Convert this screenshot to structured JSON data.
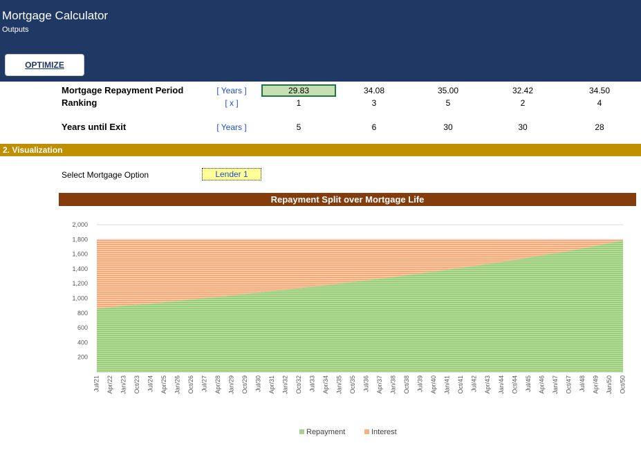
{
  "header": {
    "title": "Mortgage Calculator",
    "subtitle": "Outputs",
    "optimize_label": "OPTIMIZE",
    "bg_color": "#1f3864"
  },
  "table": {
    "rows": [
      {
        "label": "Mortgage Repayment Period",
        "unit": "[ Years ]",
        "values": [
          "29.83",
          "34.08",
          "35.00",
          "32.42",
          "34.50"
        ]
      },
      {
        "label": "Ranking",
        "unit": "[ x ]",
        "values": [
          "1",
          "3",
          "5",
          "2",
          "4"
        ]
      },
      {
        "label": "Years until Exit",
        "unit": "[ Years ]",
        "values": [
          "5",
          "6",
          "30",
          "30",
          "28"
        ]
      }
    ],
    "selected_cell_color": "#c6e0b4"
  },
  "section": {
    "title": "2.  Visualization",
    "color": "#bf8f00"
  },
  "select": {
    "label": "Select Mortgage Option",
    "value": "Lender 1"
  },
  "chart_data": {
    "type": "area",
    "title": "Repayment Split over Mortgage Life",
    "stacked": true,
    "x": [
      "Jul/21",
      "Apr/22",
      "Jan/23",
      "Oct/23",
      "Jul/24",
      "Apr/25",
      "Jan/26",
      "Oct/26",
      "Jul/27",
      "Apr/28",
      "Jan/29",
      "Oct/29",
      "Jul/30",
      "Apr/31",
      "Jan/32",
      "Oct/32",
      "Jul/33",
      "Apr/34",
      "Jan/35",
      "Oct/35",
      "Jul/36",
      "Apr/37",
      "Jan/38",
      "Oct/38",
      "Jul/39",
      "Apr/40",
      "Jan/41",
      "Oct/41",
      "Jul/42",
      "Apr/43",
      "Jan/44",
      "Oct/44",
      "Jul/45",
      "Apr/46",
      "Jan/47",
      "Oct/47",
      "Jul/48",
      "Apr/49",
      "Jan/50",
      "Oct/50"
    ],
    "series": [
      {
        "name": "Repayment",
        "color": "#a9d18e",
        "values": [
          860,
          880,
          900,
          915,
          930,
          950,
          965,
          985,
          1005,
          1020,
          1040,
          1060,
          1080,
          1100,
          1120,
          1140,
          1160,
          1180,
          1200,
          1225,
          1245,
          1270,
          1290,
          1315,
          1340,
          1365,
          1390,
          1415,
          1440,
          1470,
          1495,
          1525,
          1555,
          1585,
          1615,
          1645,
          1680,
          1715,
          1750,
          1790
        ]
      },
      {
        "name": "Interest",
        "color": "#f4b183",
        "values": [
          935,
          915,
          895,
          880,
          865,
          845,
          830,
          810,
          790,
          775,
          755,
          735,
          715,
          695,
          675,
          655,
          635,
          615,
          595,
          570,
          550,
          525,
          505,
          480,
          455,
          430,
          405,
          380,
          355,
          325,
          300,
          270,
          240,
          210,
          180,
          150,
          115,
          80,
          45,
          5
        ]
      }
    ],
    "ylim": [
      0,
      2000
    ],
    "yticks": [
      200,
      400,
      600,
      800,
      1000,
      1200,
      1400,
      1600,
      1800,
      2000
    ],
    "grid": true,
    "legend": "bottom"
  }
}
